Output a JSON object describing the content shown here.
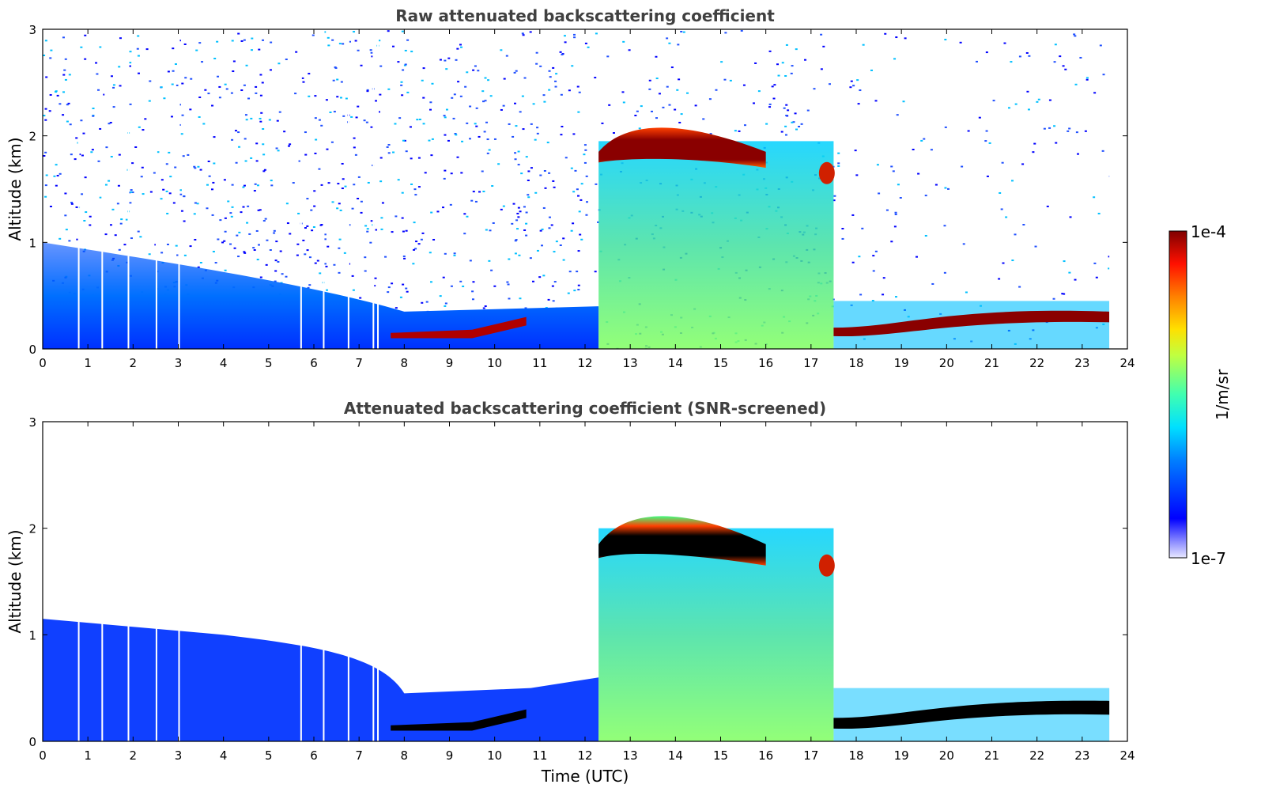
{
  "chart_data": [
    {
      "type": "heatmap",
      "title": "Raw attenuated backscattering coefficient",
      "xlabel": "",
      "ylabel": "Altitude (km)",
      "xlim": [
        0,
        24
      ],
      "ylim": [
        0,
        3
      ],
      "xticks": [
        "0",
        "1",
        "2",
        "3",
        "4",
        "5",
        "6",
        "7",
        "8",
        "9",
        "10",
        "11",
        "12",
        "13",
        "14",
        "15",
        "16",
        "17",
        "18",
        "19",
        "20",
        "21",
        "22",
        "23",
        "24"
      ],
      "yticks": [
        "0",
        "1",
        "2",
        "3"
      ],
      "features": [
        {
          "name": "cloud layer",
          "x_range": [
            12.3,
            16.0
          ],
          "altitude_km": [
            1.75,
            2.15
          ]
        },
        {
          "name": "cloud patch",
          "x_range": [
            17.2,
            17.5
          ],
          "altitude_km": [
            1.5,
            1.8
          ]
        },
        {
          "name": "boundary layer top",
          "x_range": [
            17.5,
            23.6
          ],
          "altitude_km": [
            0.15,
            0.45
          ]
        },
        {
          "name": "morning aerosol layer",
          "x_range": [
            7.7,
            10.7
          ],
          "altitude_km": [
            0.1,
            0.3
          ]
        }
      ]
    },
    {
      "type": "heatmap",
      "title": "Attenuated backscattering coefficient (SNR-screened)",
      "xlabel": "Time (UTC)",
      "ylabel": "Altitude (km)",
      "xlim": [
        0,
        24
      ],
      "ylim": [
        0,
        3
      ],
      "xticks": [
        "0",
        "1",
        "2",
        "3",
        "4",
        "5",
        "6",
        "7",
        "8",
        "9",
        "10",
        "11",
        "12",
        "13",
        "14",
        "15",
        "16",
        "17",
        "18",
        "19",
        "20",
        "21",
        "22",
        "23",
        "24"
      ],
      "yticks": [
        "0",
        "1",
        "2",
        "3"
      ]
    }
  ],
  "colorbar": {
    "label": "1/m/sr",
    "max_label": "1e-4",
    "min_label": "1e-7",
    "scale": "log",
    "range": [
      1e-07,
      0.0001
    ],
    "colormap": "jet"
  }
}
